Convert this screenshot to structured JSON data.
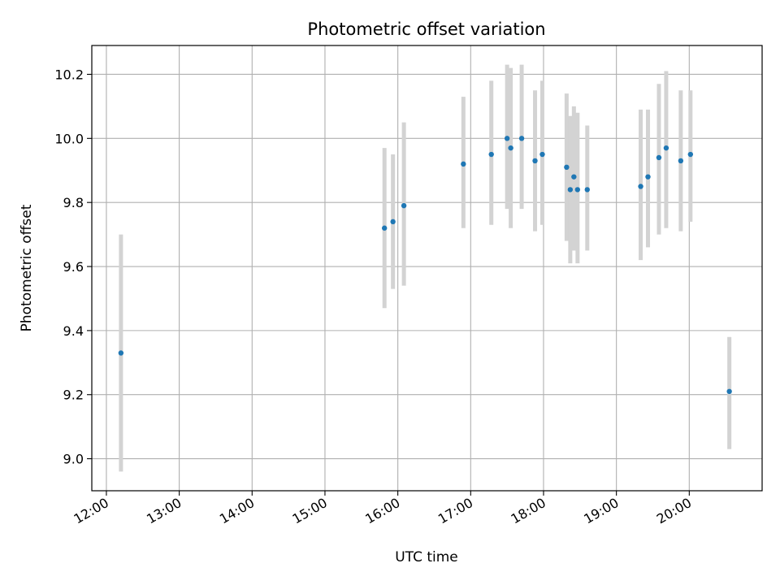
{
  "chart_data": {
    "type": "scatter",
    "title": "Photometric offset variation",
    "xlabel": "UTC time",
    "ylabel": "Photometric offset",
    "xlim_hours": [
      11.8,
      21.0
    ],
    "ylim": [
      8.9,
      10.29
    ],
    "x_ticks": [
      {
        "value": 12,
        "label": "12:00"
      },
      {
        "value": 13,
        "label": "13:00"
      },
      {
        "value": 14,
        "label": "14:00"
      },
      {
        "value": 15,
        "label": "15:00"
      },
      {
        "value": 16,
        "label": "16:00"
      },
      {
        "value": 17,
        "label": "17:00"
      },
      {
        "value": 18,
        "label": "18:00"
      },
      {
        "value": 19,
        "label": "19:00"
      },
      {
        "value": 20,
        "label": "20:00"
      }
    ],
    "y_ticks": [
      {
        "value": 9.0,
        "label": "9.0"
      },
      {
        "value": 9.2,
        "label": "9.2"
      },
      {
        "value": 9.4,
        "label": "9.4"
      },
      {
        "value": 9.6,
        "label": "9.6"
      },
      {
        "value": 9.8,
        "label": "9.8"
      },
      {
        "value": 10.0,
        "label": "10.0"
      },
      {
        "value": 10.2,
        "label": "10.2"
      }
    ],
    "grid": true,
    "point_color": "#1f77b4",
    "errorbar_color": "#d3d3d3",
    "points": [
      {
        "time": "12:12",
        "y": 9.33,
        "ylow": 8.96,
        "yhigh": 9.7
      },
      {
        "time": "15:49",
        "y": 9.72,
        "ylow": 9.47,
        "yhigh": 9.97
      },
      {
        "time": "15:56",
        "y": 9.74,
        "ylow": 9.53,
        "yhigh": 9.95
      },
      {
        "time": "16:05",
        "y": 9.79,
        "ylow": 9.54,
        "yhigh": 10.05
      },
      {
        "time": "16:54",
        "y": 9.92,
        "ylow": 9.72,
        "yhigh": 10.13
      },
      {
        "time": "17:17",
        "y": 9.95,
        "ylow": 9.73,
        "yhigh": 10.18
      },
      {
        "time": "17:30",
        "y": 10.0,
        "ylow": 9.78,
        "yhigh": 10.23
      },
      {
        "time": "17:33",
        "y": 9.97,
        "ylow": 9.72,
        "yhigh": 10.22
      },
      {
        "time": "17:42",
        "y": 10.0,
        "ylow": 9.78,
        "yhigh": 10.23
      },
      {
        "time": "17:53",
        "y": 9.93,
        "ylow": 9.71,
        "yhigh": 10.15
      },
      {
        "time": "17:59",
        "y": 9.95,
        "ylow": 9.73,
        "yhigh": 10.18
      },
      {
        "time": "18:19",
        "y": 9.91,
        "ylow": 9.68,
        "yhigh": 10.14
      },
      {
        "time": "18:22",
        "y": 9.84,
        "ylow": 9.61,
        "yhigh": 10.07
      },
      {
        "time": "18:25",
        "y": 9.88,
        "ylow": 9.65,
        "yhigh": 10.1
      },
      {
        "time": "18:28",
        "y": 9.84,
        "ylow": 9.61,
        "yhigh": 10.08
      },
      {
        "time": "18:36",
        "y": 9.84,
        "ylow": 9.65,
        "yhigh": 10.04
      },
      {
        "time": "19:20",
        "y": 9.85,
        "ylow": 9.62,
        "yhigh": 10.09
      },
      {
        "time": "19:26",
        "y": 9.88,
        "ylow": 9.66,
        "yhigh": 10.09
      },
      {
        "time": "19:35",
        "y": 9.94,
        "ylow": 9.7,
        "yhigh": 10.17
      },
      {
        "time": "19:41",
        "y": 9.97,
        "ylow": 9.72,
        "yhigh": 10.21
      },
      {
        "time": "19:53",
        "y": 9.93,
        "ylow": 9.71,
        "yhigh": 10.15
      },
      {
        "time": "20:01",
        "y": 9.95,
        "ylow": 9.74,
        "yhigh": 10.15
      },
      {
        "time": "20:33",
        "y": 9.21,
        "ylow": 9.03,
        "yhigh": 9.38
      }
    ]
  }
}
